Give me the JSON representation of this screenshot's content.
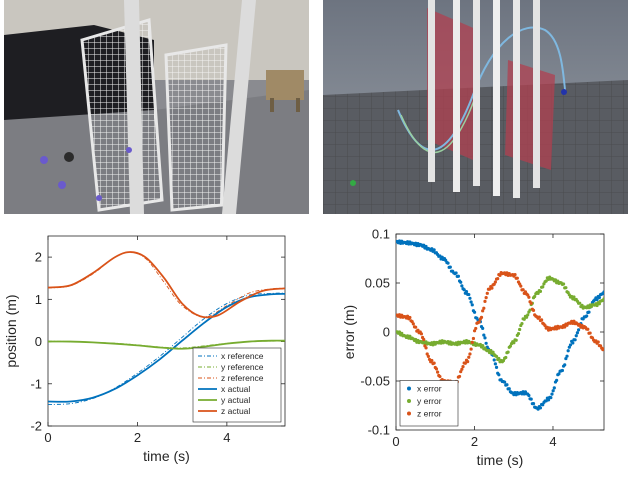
{
  "photos": {
    "left": {
      "icon": "lab-photo-icon"
    },
    "right": {
      "icon": "simulation-render-icon"
    }
  },
  "chart_data": [
    {
      "type": "line",
      "xlabel": "time (s)",
      "ylabel": "position (m)",
      "xlim": [
        0,
        5.3
      ],
      "ylim": [
        -2,
        2.5
      ],
      "xticks": [
        "0",
        "2",
        "4"
      ],
      "yticks": [
        "-2",
        "-1",
        "0",
        "1",
        "2"
      ],
      "grid": false,
      "legend": "bottom-right",
      "series": [
        {
          "name": "x reference",
          "style": "dash-dot",
          "color": "#0072BD",
          "x": [
            0,
            0.5,
            1,
            1.5,
            2,
            2.5,
            3,
            3.5,
            4,
            4.5,
            5,
            5.3
          ],
          "y": [
            -1.49,
            -1.47,
            -1.35,
            -1.1,
            -0.75,
            -0.35,
            0.1,
            0.55,
            0.9,
            1.1,
            1.14,
            1.15
          ]
        },
        {
          "name": "y reference",
          "style": "dash-dot",
          "color": "#77AC30",
          "x": [
            0,
            0.5,
            1,
            1.5,
            2,
            2.5,
            3,
            3.5,
            4,
            4.5,
            5,
            5.3
          ],
          "y": [
            0.01,
            0.0,
            -0.02,
            -0.04,
            -0.08,
            -0.13,
            -0.15,
            -0.1,
            -0.04,
            0.0,
            0.01,
            0.01
          ]
        },
        {
          "name": "z reference",
          "style": "dash-dot",
          "color": "#D95319",
          "x": [
            0,
            0.5,
            1,
            1.5,
            1.85,
            2.2,
            2.6,
            3,
            3.5,
            4,
            4.5,
            5,
            5.3
          ],
          "y": [
            1.27,
            1.32,
            1.6,
            2.0,
            2.12,
            1.95,
            1.4,
            0.85,
            0.58,
            0.85,
            1.15,
            1.25,
            1.26
          ]
        },
        {
          "name": "x actual",
          "style": "solid",
          "color": "#0072BD",
          "x": [
            0,
            0.5,
            1,
            1.5,
            2,
            2.5,
            3,
            3.5,
            4,
            4.5,
            5,
            5.3
          ],
          "y": [
            -1.42,
            -1.42,
            -1.33,
            -1.12,
            -0.8,
            -0.42,
            0.02,
            0.45,
            0.82,
            1.05,
            1.12,
            1.13
          ]
        },
        {
          "name": "y actual",
          "style": "solid",
          "color": "#77AC30",
          "x": [
            0,
            0.5,
            1,
            1.5,
            2,
            2.5,
            3,
            3.5,
            4,
            4.5,
            5,
            5.3
          ],
          "y": [
            0.0,
            0.0,
            -0.02,
            -0.05,
            -0.09,
            -0.14,
            -0.17,
            -0.12,
            -0.05,
            0.0,
            0.02,
            0.02
          ]
        },
        {
          "name": "z actual",
          "style": "solid",
          "color": "#D95319",
          "x": [
            0,
            0.5,
            1,
            1.5,
            1.85,
            2.2,
            2.6,
            3,
            3.4,
            3.8,
            4.3,
            4.8,
            5.3
          ],
          "y": [
            1.28,
            1.33,
            1.62,
            2.0,
            2.12,
            1.98,
            1.5,
            0.9,
            0.6,
            0.62,
            0.95,
            1.2,
            1.26
          ]
        }
      ]
    },
    {
      "type": "scatter",
      "xlabel": "time (s)",
      "ylabel": "error (m)",
      "xlim": [
        0,
        5.3
      ],
      "ylim": [
        -0.1,
        0.1
      ],
      "xticks": [
        "0",
        "2",
        "4"
      ],
      "yticks": [
        "-0.1",
        "-0.05",
        "0",
        "0.05",
        "0.1"
      ],
      "grid": false,
      "legend": "bottom-left",
      "series": [
        {
          "name": "x error",
          "color": "#0072BD",
          "x": [
            0,
            0.3,
            0.6,
            0.9,
            1.2,
            1.5,
            1.8,
            2.1,
            2.4,
            2.7,
            3.0,
            3.3,
            3.6,
            3.9,
            4.2,
            4.5,
            4.8,
            5.1,
            5.3
          ],
          "y": [
            0.092,
            0.091,
            0.089,
            0.084,
            0.075,
            0.06,
            0.04,
            0.012,
            -0.02,
            -0.05,
            -0.063,
            -0.062,
            -0.078,
            -0.068,
            -0.04,
            -0.01,
            0.015,
            0.034,
            0.04
          ]
        },
        {
          "name": "y error",
          "color": "#77AC30",
          "x": [
            0,
            0.3,
            0.6,
            0.9,
            1.2,
            1.5,
            1.8,
            2.1,
            2.4,
            2.7,
            3.0,
            3.3,
            3.6,
            3.9,
            4.2,
            4.5,
            4.8,
            5.1,
            5.3
          ],
          "y": [
            0.0,
            -0.005,
            -0.01,
            -0.012,
            -0.01,
            -0.012,
            -0.01,
            -0.013,
            -0.02,
            -0.03,
            -0.01,
            0.015,
            0.04,
            0.055,
            0.05,
            0.035,
            0.025,
            0.028,
            0.033
          ]
        },
        {
          "name": "z error",
          "color": "#D95319",
          "x": [
            0,
            0.3,
            0.6,
            0.9,
            1.2,
            1.5,
            1.8,
            2.1,
            2.4,
            2.7,
            3.0,
            3.3,
            3.6,
            3.9,
            4.2,
            4.5,
            4.8,
            5.1,
            5.3
          ],
          "y": [
            0.017,
            0.015,
            0.0,
            -0.03,
            -0.05,
            -0.052,
            -0.03,
            0.01,
            0.045,
            0.06,
            0.058,
            0.04,
            0.015,
            0.003,
            0.005,
            0.01,
            0.005,
            -0.01,
            -0.018
          ]
        }
      ]
    }
  ]
}
